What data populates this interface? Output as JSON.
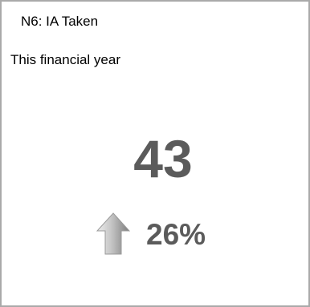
{
  "card": {
    "title": "N6: IA Taken",
    "subtitle": "This financial year"
  },
  "metric": {
    "value": "43",
    "trend": {
      "direction": "up",
      "icon": "arrow-up-icon",
      "label": "26%"
    }
  },
  "colors": {
    "value_text": "#5b5b5b",
    "border": "#aaaaaa",
    "arrow_light": "#e6e6e6",
    "arrow_dark": "#7a7a7a"
  }
}
